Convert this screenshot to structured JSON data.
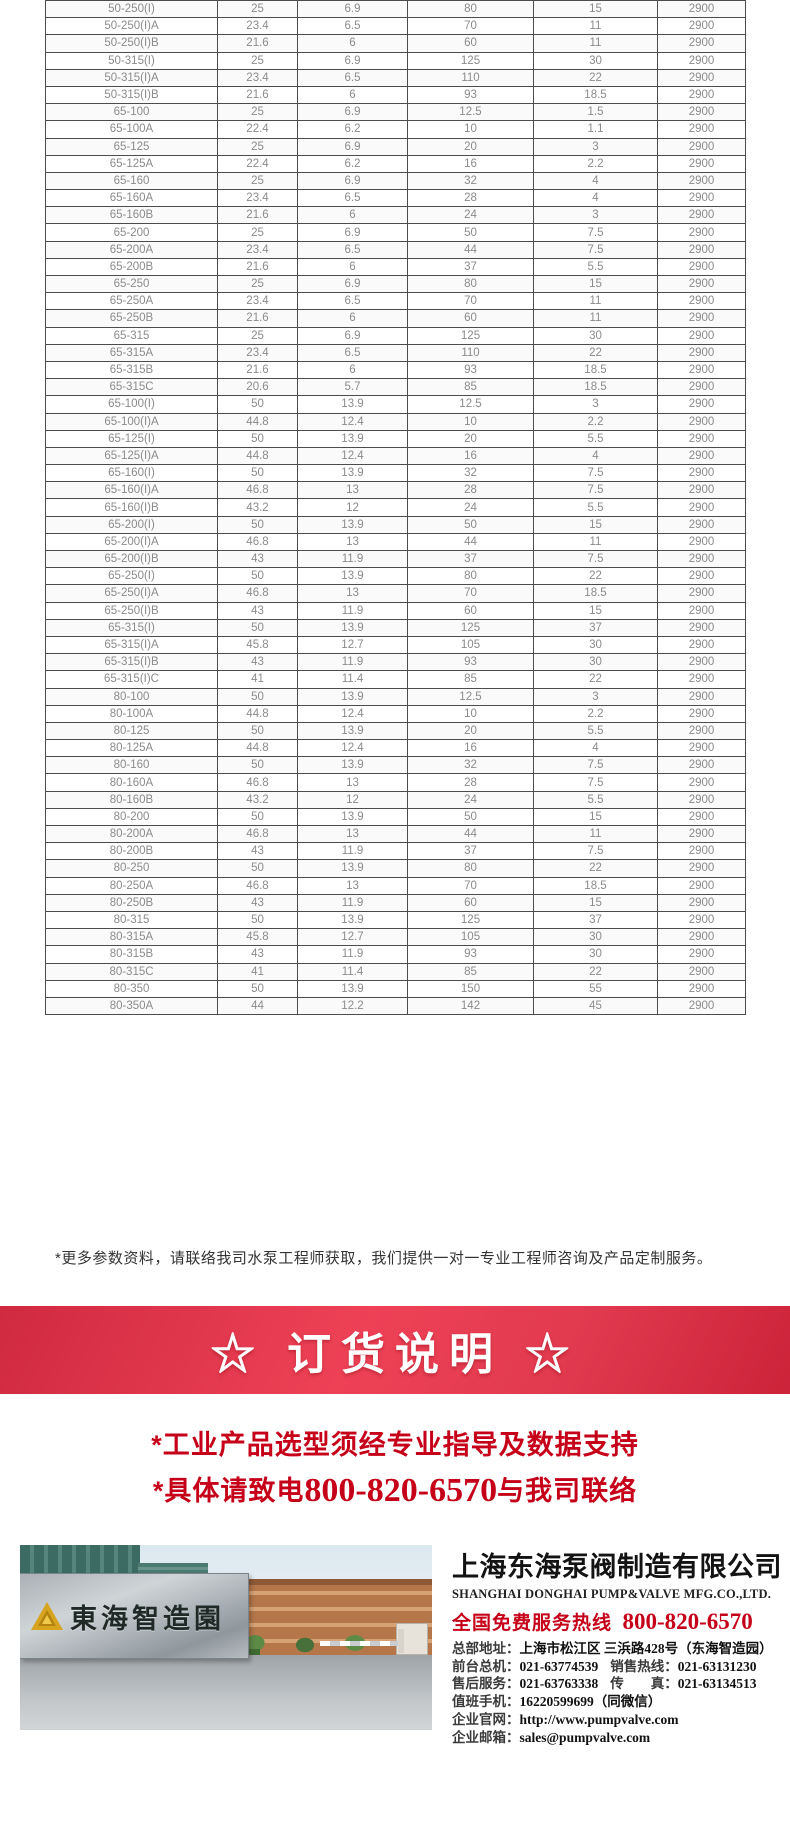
{
  "table": {
    "rows": [
      [
        "50-250(I)",
        "25",
        "6.9",
        "80",
        "15",
        "2900"
      ],
      [
        "50-250(I)A",
        "23.4",
        "6.5",
        "70",
        "11",
        "2900"
      ],
      [
        "50-250(I)B",
        "21.6",
        "6",
        "60",
        "11",
        "2900"
      ],
      [
        "50-315(I)",
        "25",
        "6.9",
        "125",
        "30",
        "2900"
      ],
      [
        "50-315(I)A",
        "23.4",
        "6.5",
        "110",
        "22",
        "2900"
      ],
      [
        "50-315(I)B",
        "21.6",
        "6",
        "93",
        "18.5",
        "2900"
      ],
      [
        "65-100",
        "25",
        "6.9",
        "12.5",
        "1.5",
        "2900"
      ],
      [
        "65-100A",
        "22.4",
        "6.2",
        "10",
        "1.1",
        "2900"
      ],
      [
        "65-125",
        "25",
        "6.9",
        "20",
        "3",
        "2900"
      ],
      [
        "65-125A",
        "22.4",
        "6.2",
        "16",
        "2.2",
        "2900"
      ],
      [
        "65-160",
        "25",
        "6.9",
        "32",
        "4",
        "2900"
      ],
      [
        "65-160A",
        "23.4",
        "6.5",
        "28",
        "4",
        "2900"
      ],
      [
        "65-160B",
        "21.6",
        "6",
        "24",
        "3",
        "2900"
      ],
      [
        "65-200",
        "25",
        "6.9",
        "50",
        "7.5",
        "2900"
      ],
      [
        "65-200A",
        "23.4",
        "6.5",
        "44",
        "7.5",
        "2900"
      ],
      [
        "65-200B",
        "21.6",
        "6",
        "37",
        "5.5",
        "2900"
      ],
      [
        "65-250",
        "25",
        "6.9",
        "80",
        "15",
        "2900"
      ],
      [
        "65-250A",
        "23.4",
        "6.5",
        "70",
        "11",
        "2900"
      ],
      [
        "65-250B",
        "21.6",
        "6",
        "60",
        "11",
        "2900"
      ],
      [
        "65-315",
        "25",
        "6.9",
        "125",
        "30",
        "2900"
      ],
      [
        "65-315A",
        "23.4",
        "6.5",
        "110",
        "22",
        "2900"
      ],
      [
        "65-315B",
        "21.6",
        "6",
        "93",
        "18.5",
        "2900"
      ],
      [
        "65-315C",
        "20.6",
        "5.7",
        "85",
        "18.5",
        "2900"
      ],
      [
        "65-100(I)",
        "50",
        "13.9",
        "12.5",
        "3",
        "2900"
      ],
      [
        "65-100(I)A",
        "44.8",
        "12.4",
        "10",
        "2.2",
        "2900"
      ],
      [
        "65-125(I)",
        "50",
        "13.9",
        "20",
        "5.5",
        "2900"
      ],
      [
        "65-125(I)A",
        "44.8",
        "12.4",
        "16",
        "4",
        "2900"
      ],
      [
        "65-160(I)",
        "50",
        "13.9",
        "32",
        "7.5",
        "2900"
      ],
      [
        "65-160(I)A",
        "46.8",
        "13",
        "28",
        "7.5",
        "2900"
      ],
      [
        "65-160(I)B",
        "43.2",
        "12",
        "24",
        "5.5",
        "2900"
      ],
      [
        "65-200(I)",
        "50",
        "13.9",
        "50",
        "15",
        "2900"
      ],
      [
        "65-200(I)A",
        "46.8",
        "13",
        "44",
        "11",
        "2900"
      ],
      [
        "65-200(I)B",
        "43",
        "11.9",
        "37",
        "7.5",
        "2900"
      ],
      [
        "65-250(I)",
        "50",
        "13.9",
        "80",
        "22",
        "2900"
      ],
      [
        "65-250(I)A",
        "46.8",
        "13",
        "70",
        "18.5",
        "2900"
      ],
      [
        "65-250(I)B",
        "43",
        "11.9",
        "60",
        "15",
        "2900"
      ],
      [
        "65-315(I)",
        "50",
        "13.9",
        "125",
        "37",
        "2900"
      ],
      [
        "65-315(I)A",
        "45.8",
        "12.7",
        "105",
        "30",
        "2900"
      ],
      [
        "65-315(I)B",
        "43",
        "11.9",
        "93",
        "30",
        "2900"
      ],
      [
        "65-315(I)C",
        "41",
        "11.4",
        "85",
        "22",
        "2900"
      ],
      [
        "80-100",
        "50",
        "13.9",
        "12.5",
        "3",
        "2900"
      ],
      [
        "80-100A",
        "44.8",
        "12.4",
        "10",
        "2.2",
        "2900"
      ],
      [
        "80-125",
        "50",
        "13.9",
        "20",
        "5.5",
        "2900"
      ],
      [
        "80-125A",
        "44.8",
        "12.4",
        "16",
        "4",
        "2900"
      ],
      [
        "80-160",
        "50",
        "13.9",
        "32",
        "7.5",
        "2900"
      ],
      [
        "80-160A",
        "46.8",
        "13",
        "28",
        "7.5",
        "2900"
      ],
      [
        "80-160B",
        "43.2",
        "12",
        "24",
        "5.5",
        "2900"
      ],
      [
        "80-200",
        "50",
        "13.9",
        "50",
        "15",
        "2900"
      ],
      [
        "80-200A",
        "46.8",
        "13",
        "44",
        "11",
        "2900"
      ],
      [
        "80-200B",
        "43",
        "11.9",
        "37",
        "7.5",
        "2900"
      ],
      [
        "80-250",
        "50",
        "13.9",
        "80",
        "22",
        "2900"
      ],
      [
        "80-250A",
        "46.8",
        "13",
        "70",
        "18.5",
        "2900"
      ],
      [
        "80-250B",
        "43",
        "11.9",
        "60",
        "15",
        "2900"
      ],
      [
        "80-315",
        "50",
        "13.9",
        "125",
        "37",
        "2900"
      ],
      [
        "80-315A",
        "45.8",
        "12.7",
        "105",
        "30",
        "2900"
      ],
      [
        "80-315B",
        "43",
        "11.9",
        "93",
        "30",
        "2900"
      ],
      [
        "80-315C",
        "41",
        "11.4",
        "85",
        "22",
        "2900"
      ],
      [
        "80-350",
        "50",
        "13.9",
        "150",
        "55",
        "2900"
      ],
      [
        "80-350A",
        "44",
        "12.2",
        "142",
        "45",
        "2900"
      ]
    ]
  },
  "note": "*更多参数资料，请联络我司水泵工程师获取，我们提供一对一专业工程师咨询及产品定制服务。",
  "banner": {
    "title": "☆ 订货说明 ☆"
  },
  "notice": {
    "line1": "*工业产品选型须经专业指导及数据支持",
    "line2_prefix": "*具体请致电",
    "line2_number": "800-820-6570",
    "line2_suffix": "与我司联络"
  },
  "footer": {
    "company_cn": "上海东海泵阀制造有限公司",
    "company_en": "SHANGHAI DONGHAI PUMP&VALVE MFG.CO.,LTD.",
    "hotline_label": "全国免费服务热线",
    "hotline_number": "800-820-6570",
    "contacts": [
      [
        {
          "label": "总部地址：",
          "value": "上海市松江区 三浜路428号（东海智造园）"
        }
      ],
      [
        {
          "label": "前台总机：",
          "value": "021-63774539"
        },
        {
          "label": "销售热线：",
          "value": "021-63131230"
        }
      ],
      [
        {
          "label": "售后服务：",
          "value": "021-63763338"
        },
        {
          "label": "传　　真：",
          "value": "021-63134513"
        }
      ],
      [
        {
          "label": "值班手机：",
          "value": "16220599699（同微信）"
        }
      ],
      [
        {
          "label": "企业官网：",
          "value": "http://www.pumpvalve.com",
          "link": true
        }
      ],
      [
        {
          "label": "企业邮箱：",
          "value": "sales@pumpvalve.com",
          "link": true
        }
      ]
    ],
    "photo_sign_text": "東海智造園"
  },
  "colors": {
    "banner_red": "#e23a4f",
    "notice_red": "#c50018",
    "logo_gold": "#d6a41f",
    "table_text": "#8b8b8b"
  }
}
